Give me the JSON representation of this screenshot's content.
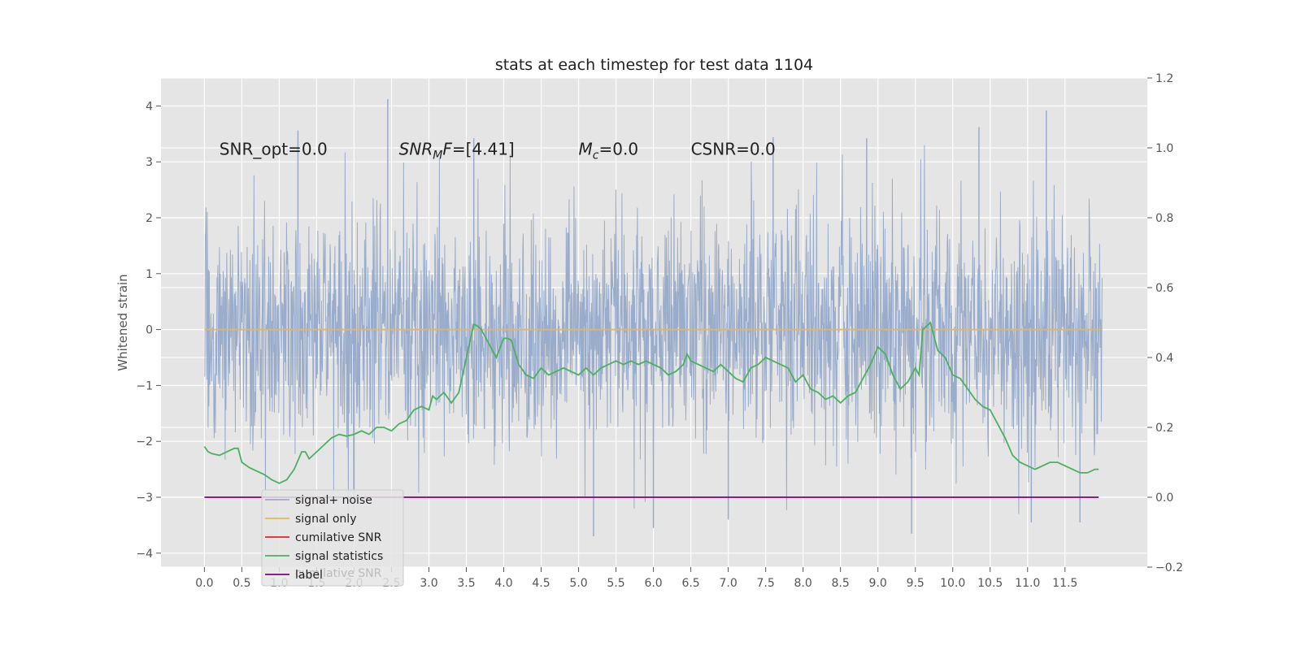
{
  "chart_data": {
    "type": "line",
    "title": "stats at each timestep for test data 1104",
    "ylabel": "Whitened strain",
    "xlim": [
      -0.58,
      12.6
    ],
    "ylim": [
      -4.25,
      4.5
    ],
    "ylim_right": [
      -0.2,
      1.2
    ],
    "x_ticks": [
      0.0,
      0.5,
      1.0,
      1.5,
      2.0,
      2.5,
      3.0,
      3.5,
      4.0,
      4.5,
      5.0,
      5.5,
      6.0,
      6.5,
      7.0,
      7.5,
      8.0,
      8.5,
      9.0,
      9.5,
      10.0,
      10.5,
      11.0,
      11.5
    ],
    "y_ticks": [
      -4,
      -3,
      -2,
      -1,
      0,
      1,
      2,
      3,
      4
    ],
    "y_ticks_right": [
      -0.2,
      0.0,
      0.2,
      0.4,
      0.6,
      0.8,
      1.0,
      1.2
    ],
    "grid": true,
    "legend_position": "lower-left",
    "annotations": [
      {
        "id": "snr-opt",
        "text": "SNR_opt=0.0",
        "x": 0.2,
        "y": 3.2
      },
      {
        "id": "snr-mf",
        "text": "SNR_MF=[4.41]",
        "x": 2.6,
        "y": 3.2
      },
      {
        "id": "mc",
        "text": "M_c=0.0",
        "x": 5.0,
        "y": 3.2
      },
      {
        "id": "csnr",
        "text": "CSNR=0.0",
        "x": 6.5,
        "y": 3.2
      }
    ],
    "series": [
      {
        "name": "signal+ noise",
        "color": "#9aaccb",
        "axis": "left",
        "x_range": [
          0.0,
          12.0
        ],
        "noise_sigma": 1.0,
        "noise_seed": 1104,
        "spikes": [
          [
            2.45,
            4.12
          ],
          [
            11.25,
            3.92
          ],
          [
            1.25,
            3.56
          ],
          [
            10.35,
            3.62
          ],
          [
            8.85,
            3.42
          ],
          [
            3.6,
            3.42
          ],
          [
            7.6,
            3.44
          ],
          [
            5.2,
            -3.7
          ],
          [
            2.0,
            -2.95
          ],
          [
            6.0,
            -3.55
          ],
          [
            11.05,
            -3.45
          ],
          [
            11.7,
            -3.45
          ],
          [
            9.45,
            -3.65
          ],
          [
            7.0,
            -3.4
          ]
        ]
      },
      {
        "name": "signal only",
        "color": "#e8b84b",
        "axis": "left",
        "x": [
          0.0,
          12.0
        ],
        "y": [
          0.0,
          0.0
        ]
      },
      {
        "name": "cumilative SNR",
        "color": "#d62728",
        "axis": "left",
        "x": [],
        "y": []
      },
      {
        "name": "signal statistics",
        "color": "#4caf61",
        "axis": "right",
        "x": [
          0.0,
          0.05,
          0.1,
          0.2,
          0.3,
          0.4,
          0.45,
          0.5,
          0.6,
          0.7,
          0.8,
          0.9,
          1.0,
          1.1,
          1.2,
          1.3,
          1.35,
          1.4,
          1.5,
          1.6,
          1.7,
          1.8,
          1.9,
          2.0,
          2.1,
          2.2,
          2.3,
          2.4,
          2.5,
          2.6,
          2.7,
          2.8,
          2.9,
          3.0,
          3.05,
          3.1,
          3.2,
          3.3,
          3.4,
          3.5,
          3.6,
          3.65,
          3.7,
          3.8,
          3.9,
          4.0,
          4.05,
          4.1,
          4.2,
          4.3,
          4.4,
          4.5,
          4.6,
          4.7,
          4.8,
          4.9,
          5.0,
          5.1,
          5.2,
          5.3,
          5.4,
          5.5,
          5.6,
          5.7,
          5.8,
          5.9,
          6.0,
          6.1,
          6.2,
          6.3,
          6.4,
          6.45,
          6.5,
          6.6,
          6.7,
          6.8,
          6.9,
          7.0,
          7.1,
          7.2,
          7.3,
          7.4,
          7.5,
          7.6,
          7.7,
          7.8,
          7.9,
          8.0,
          8.1,
          8.2,
          8.3,
          8.4,
          8.5,
          8.6,
          8.7,
          8.8,
          8.9,
          9.0,
          9.1,
          9.2,
          9.3,
          9.4,
          9.5,
          9.55,
          9.6,
          9.7,
          9.8,
          9.9,
          10.0,
          10.1,
          10.2,
          10.3,
          10.4,
          10.5,
          10.6,
          10.7,
          10.8,
          10.9,
          11.0,
          11.1,
          11.2,
          11.3,
          11.4,
          11.5,
          11.6,
          11.7,
          11.8,
          11.9,
          11.95
        ],
        "y": [
          0.145,
          0.13,
          0.125,
          0.12,
          0.13,
          0.14,
          0.14,
          0.1,
          0.085,
          0.075,
          0.065,
          0.05,
          0.04,
          0.05,
          0.08,
          0.13,
          0.13,
          0.11,
          0.13,
          0.15,
          0.17,
          0.18,
          0.175,
          0.18,
          0.19,
          0.18,
          0.2,
          0.2,
          0.19,
          0.21,
          0.22,
          0.25,
          0.26,
          0.25,
          0.29,
          0.28,
          0.3,
          0.27,
          0.3,
          0.4,
          0.495,
          0.49,
          0.48,
          0.44,
          0.4,
          0.455,
          0.455,
          0.45,
          0.38,
          0.35,
          0.34,
          0.37,
          0.35,
          0.36,
          0.37,
          0.36,
          0.35,
          0.37,
          0.35,
          0.37,
          0.38,
          0.39,
          0.38,
          0.39,
          0.38,
          0.39,
          0.38,
          0.37,
          0.35,
          0.36,
          0.38,
          0.41,
          0.39,
          0.38,
          0.37,
          0.36,
          0.38,
          0.36,
          0.34,
          0.33,
          0.37,
          0.38,
          0.4,
          0.39,
          0.38,
          0.37,
          0.33,
          0.35,
          0.31,
          0.3,
          0.28,
          0.29,
          0.27,
          0.29,
          0.3,
          0.34,
          0.38,
          0.43,
          0.41,
          0.35,
          0.31,
          0.33,
          0.37,
          0.35,
          0.48,
          0.5,
          0.42,
          0.4,
          0.35,
          0.34,
          0.31,
          0.28,
          0.26,
          0.25,
          0.21,
          0.17,
          0.12,
          0.1,
          0.09,
          0.08,
          0.09,
          0.1,
          0.1,
          0.09,
          0.08,
          0.07,
          0.07,
          0.08,
          0.08
        ]
      },
      {
        "name": "label",
        "color": "#800080",
        "axis": "left",
        "x": [
          0.0,
          11.95
        ],
        "y": [
          -3.0,
          -3.0
        ]
      }
    ],
    "legend_ghost_text": "cumilative SNR"
  }
}
